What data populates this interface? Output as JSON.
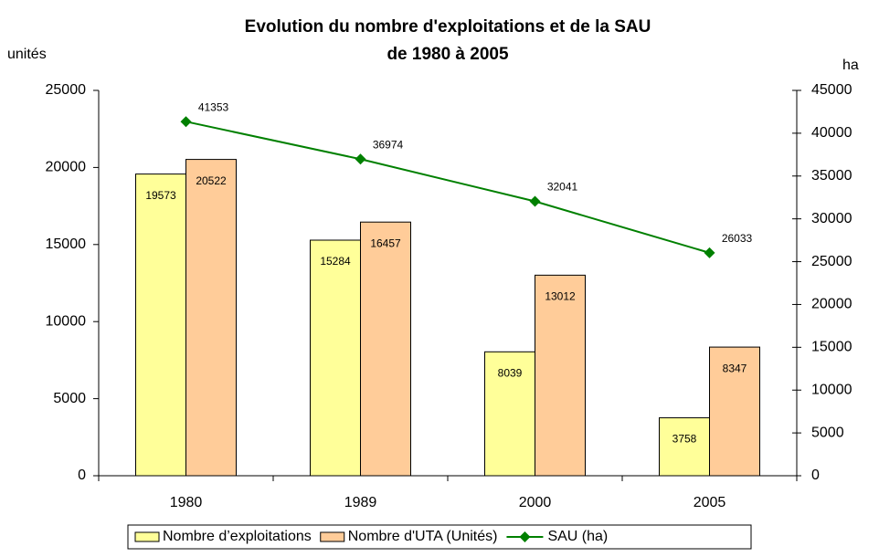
{
  "chart_data": {
    "type": "bar",
    "title_lines": [
      "Evolution du nombre d'exploitations et de la SAU",
      "de 1980 à 2005"
    ],
    "y_label": "unités",
    "y2_label": "ha",
    "categories": [
      "1980",
      "1989",
      "2000",
      "2005"
    ],
    "series": [
      {
        "name": "Nombre d’exploitations",
        "type": "bar",
        "axis": "y",
        "color": "#ffff99",
        "values": [
          19573,
          15284,
          8039,
          3758
        ]
      },
      {
        "name": "Nombre d'UTA (Unités)",
        "type": "bar",
        "axis": "y",
        "color": "#ffcc99",
        "values": [
          20522,
          16457,
          13012,
          8347
        ]
      },
      {
        "name": "SAU (ha)",
        "type": "line",
        "axis": "y2",
        "color": "#008000",
        "values": [
          41353,
          36974,
          32041,
          26033
        ]
      }
    ],
    "ylim": [
      0,
      25000
    ],
    "yticks": [
      0,
      5000,
      10000,
      15000,
      20000,
      25000
    ],
    "y2lim": [
      0,
      45000
    ],
    "y2ticks": [
      0,
      5000,
      10000,
      15000,
      20000,
      25000,
      30000,
      35000,
      40000,
      45000
    ],
    "grid": false,
    "legend": "bottom"
  }
}
